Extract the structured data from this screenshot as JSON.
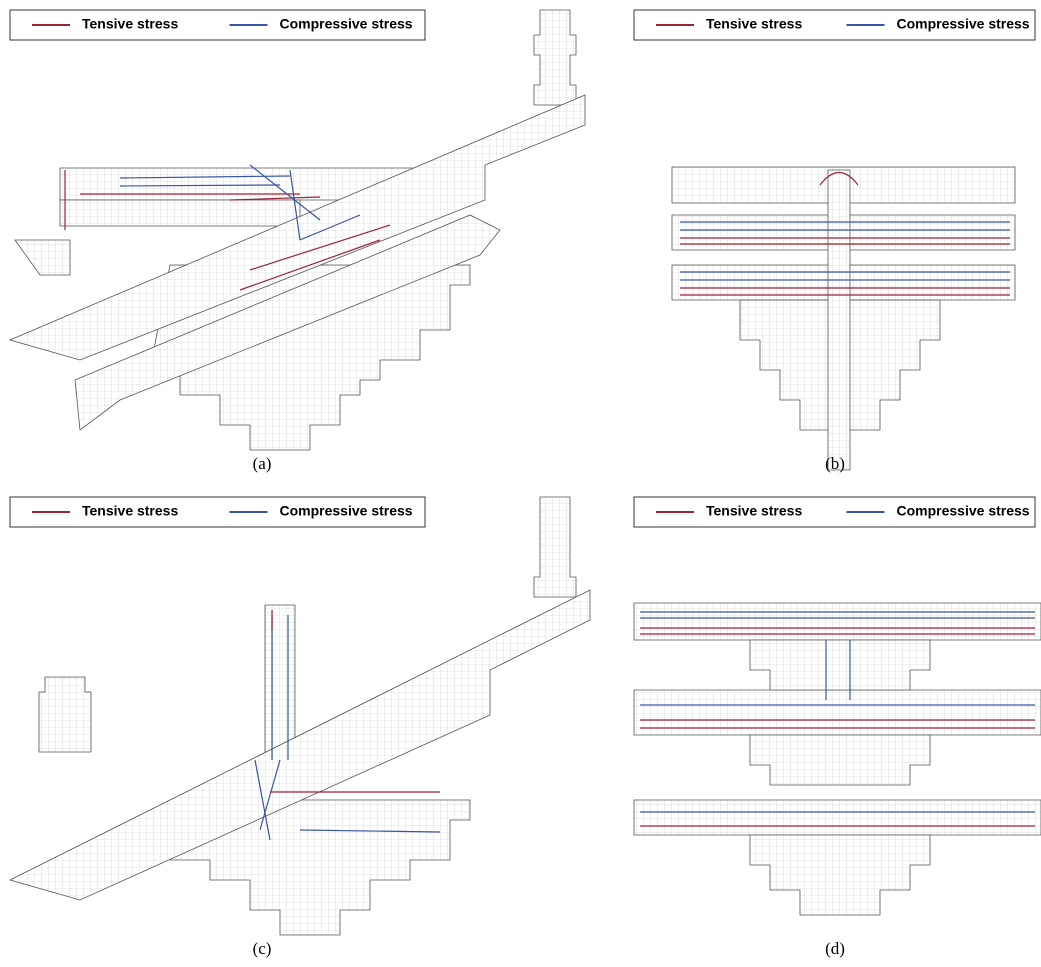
{
  "figure": {
    "panels": [
      {
        "label": "(a)",
        "legend": [
          {
            "name": "Tensive stress",
            "color": "#9b2335"
          },
          {
            "name": "Compressive stress",
            "color": "#3a55a4"
          }
        ]
      },
      {
        "label": "(b)",
        "legend": [
          {
            "name": "Tensive stress",
            "color": "#9b2335"
          },
          {
            "name": "Compressive stress",
            "color": "#3a55a4"
          }
        ]
      },
      {
        "label": "(c)",
        "legend": [
          {
            "name": "Tensive stress",
            "color": "#9b2335"
          },
          {
            "name": "Compressive stress",
            "color": "#3a55a4"
          }
        ]
      },
      {
        "label": "(d)",
        "legend": [
          {
            "name": "Tensive stress",
            "color": "#9b2335"
          },
          {
            "name": "Compressive stress",
            "color": "#3a55a4"
          }
        ]
      }
    ]
  }
}
